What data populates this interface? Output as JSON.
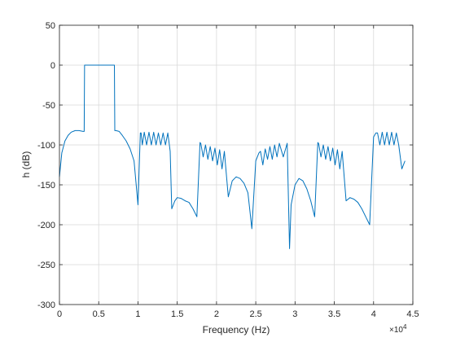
{
  "chart_data": {
    "type": "line",
    "title": "",
    "xlabel": "Frequency (Hz)",
    "ylabel": "h (dB)",
    "x_exponent_label": "×10",
    "x_exponent_power": "4",
    "xlim": [
      0,
      45000
    ],
    "ylim": [
      -300,
      50
    ],
    "x_ticks": [
      0,
      5000,
      10000,
      15000,
      20000,
      25000,
      30000,
      35000,
      40000,
      45000
    ],
    "x_tick_labels": [
      "0",
      "0.5",
      "1",
      "1.5",
      "2",
      "2.5",
      "3",
      "3.5",
      "4",
      "4.5"
    ],
    "y_ticks": [
      50,
      0,
      -50,
      -100,
      -150,
      -200,
      -250,
      -300
    ],
    "y_tick_labels": [
      "50",
      "0",
      "-50",
      "-100",
      "-150",
      "-200",
      "-250",
      "-300"
    ],
    "grid": true,
    "line_color": "#0072BD",
    "series": [
      {
        "x": [
          0,
          300,
          700,
          1100,
          1500,
          2000,
          2500,
          3000,
          3150,
          3200,
          3300,
          6900,
          7000,
          7050,
          7200,
          7600,
          8000,
          8500,
          9000,
          9500,
          10000,
          10300,
          10400,
          10550,
          10800,
          11100,
          11400,
          11700,
          12000,
          12300,
          12600,
          12900,
          13200,
          13500,
          13800,
          14100,
          14300,
          14500,
          14700,
          15000,
          15500,
          16000,
          16500,
          17000,
          17500,
          17900,
          18000,
          18300,
          18600,
          18900,
          19200,
          19500,
          19800,
          20100,
          20400,
          20700,
          21000,
          21500,
          22000,
          22500,
          23000,
          23500,
          24000,
          24500,
          25000,
          25400,
          25600,
          25900,
          26200,
          26500,
          26800,
          27100,
          27400,
          27700,
          28000,
          28500,
          29000,
          29300,
          29500,
          30000,
          30500,
          31000,
          31500,
          32000,
          32500,
          32900,
          33000,
          33300,
          33600,
          33900,
          34200,
          34500,
          34800,
          35100,
          35400,
          35700,
          36000,
          36500,
          37000,
          37500,
          38000,
          38500,
          39000,
          39500,
          40000,
          40300,
          40500,
          40800,
          41100,
          41400,
          41700,
          42000,
          42300,
          42600,
          42900,
          43200,
          43600,
          44000
        ],
        "y": [
          -140,
          -110,
          -95,
          -88,
          -84,
          -82,
          -82,
          -83,
          -83,
          0,
          0,
          0,
          0,
          -82,
          -82,
          -83,
          -88,
          -95,
          -105,
          -120,
          -175,
          -85,
          -85,
          -100,
          -84,
          -100,
          -84,
          -100,
          -84,
          -100,
          -85,
          -100,
          -85,
          -100,
          -85,
          -108,
          -180,
          -175,
          -170,
          -166,
          -167,
          -170,
          -172,
          -180,
          -190,
          -97,
          -98,
          -115,
          -100,
          -118,
          -102,
          -120,
          -104,
          -125,
          -106,
          -130,
          -108,
          -165,
          -145,
          -140,
          -142,
          -148,
          -160,
          -205,
          -120,
          -110,
          -108,
          -125,
          -105,
          -118,
          -102,
          -118,
          -100,
          -115,
          -98,
          -115,
          -98,
          -230,
          -175,
          -150,
          -142,
          -145,
          -155,
          -170,
          -190,
          -97,
          -98,
          -115,
          -100,
          -118,
          -102,
          -120,
          -104,
          -125,
          -106,
          -130,
          -108,
          -170,
          -166,
          -168,
          -172,
          -180,
          -190,
          -200,
          -90,
          -85,
          -85,
          -100,
          -84,
          -100,
          -84,
          -100,
          -84,
          -100,
          -85,
          -100,
          -130,
          -120
        ]
      }
    ]
  }
}
